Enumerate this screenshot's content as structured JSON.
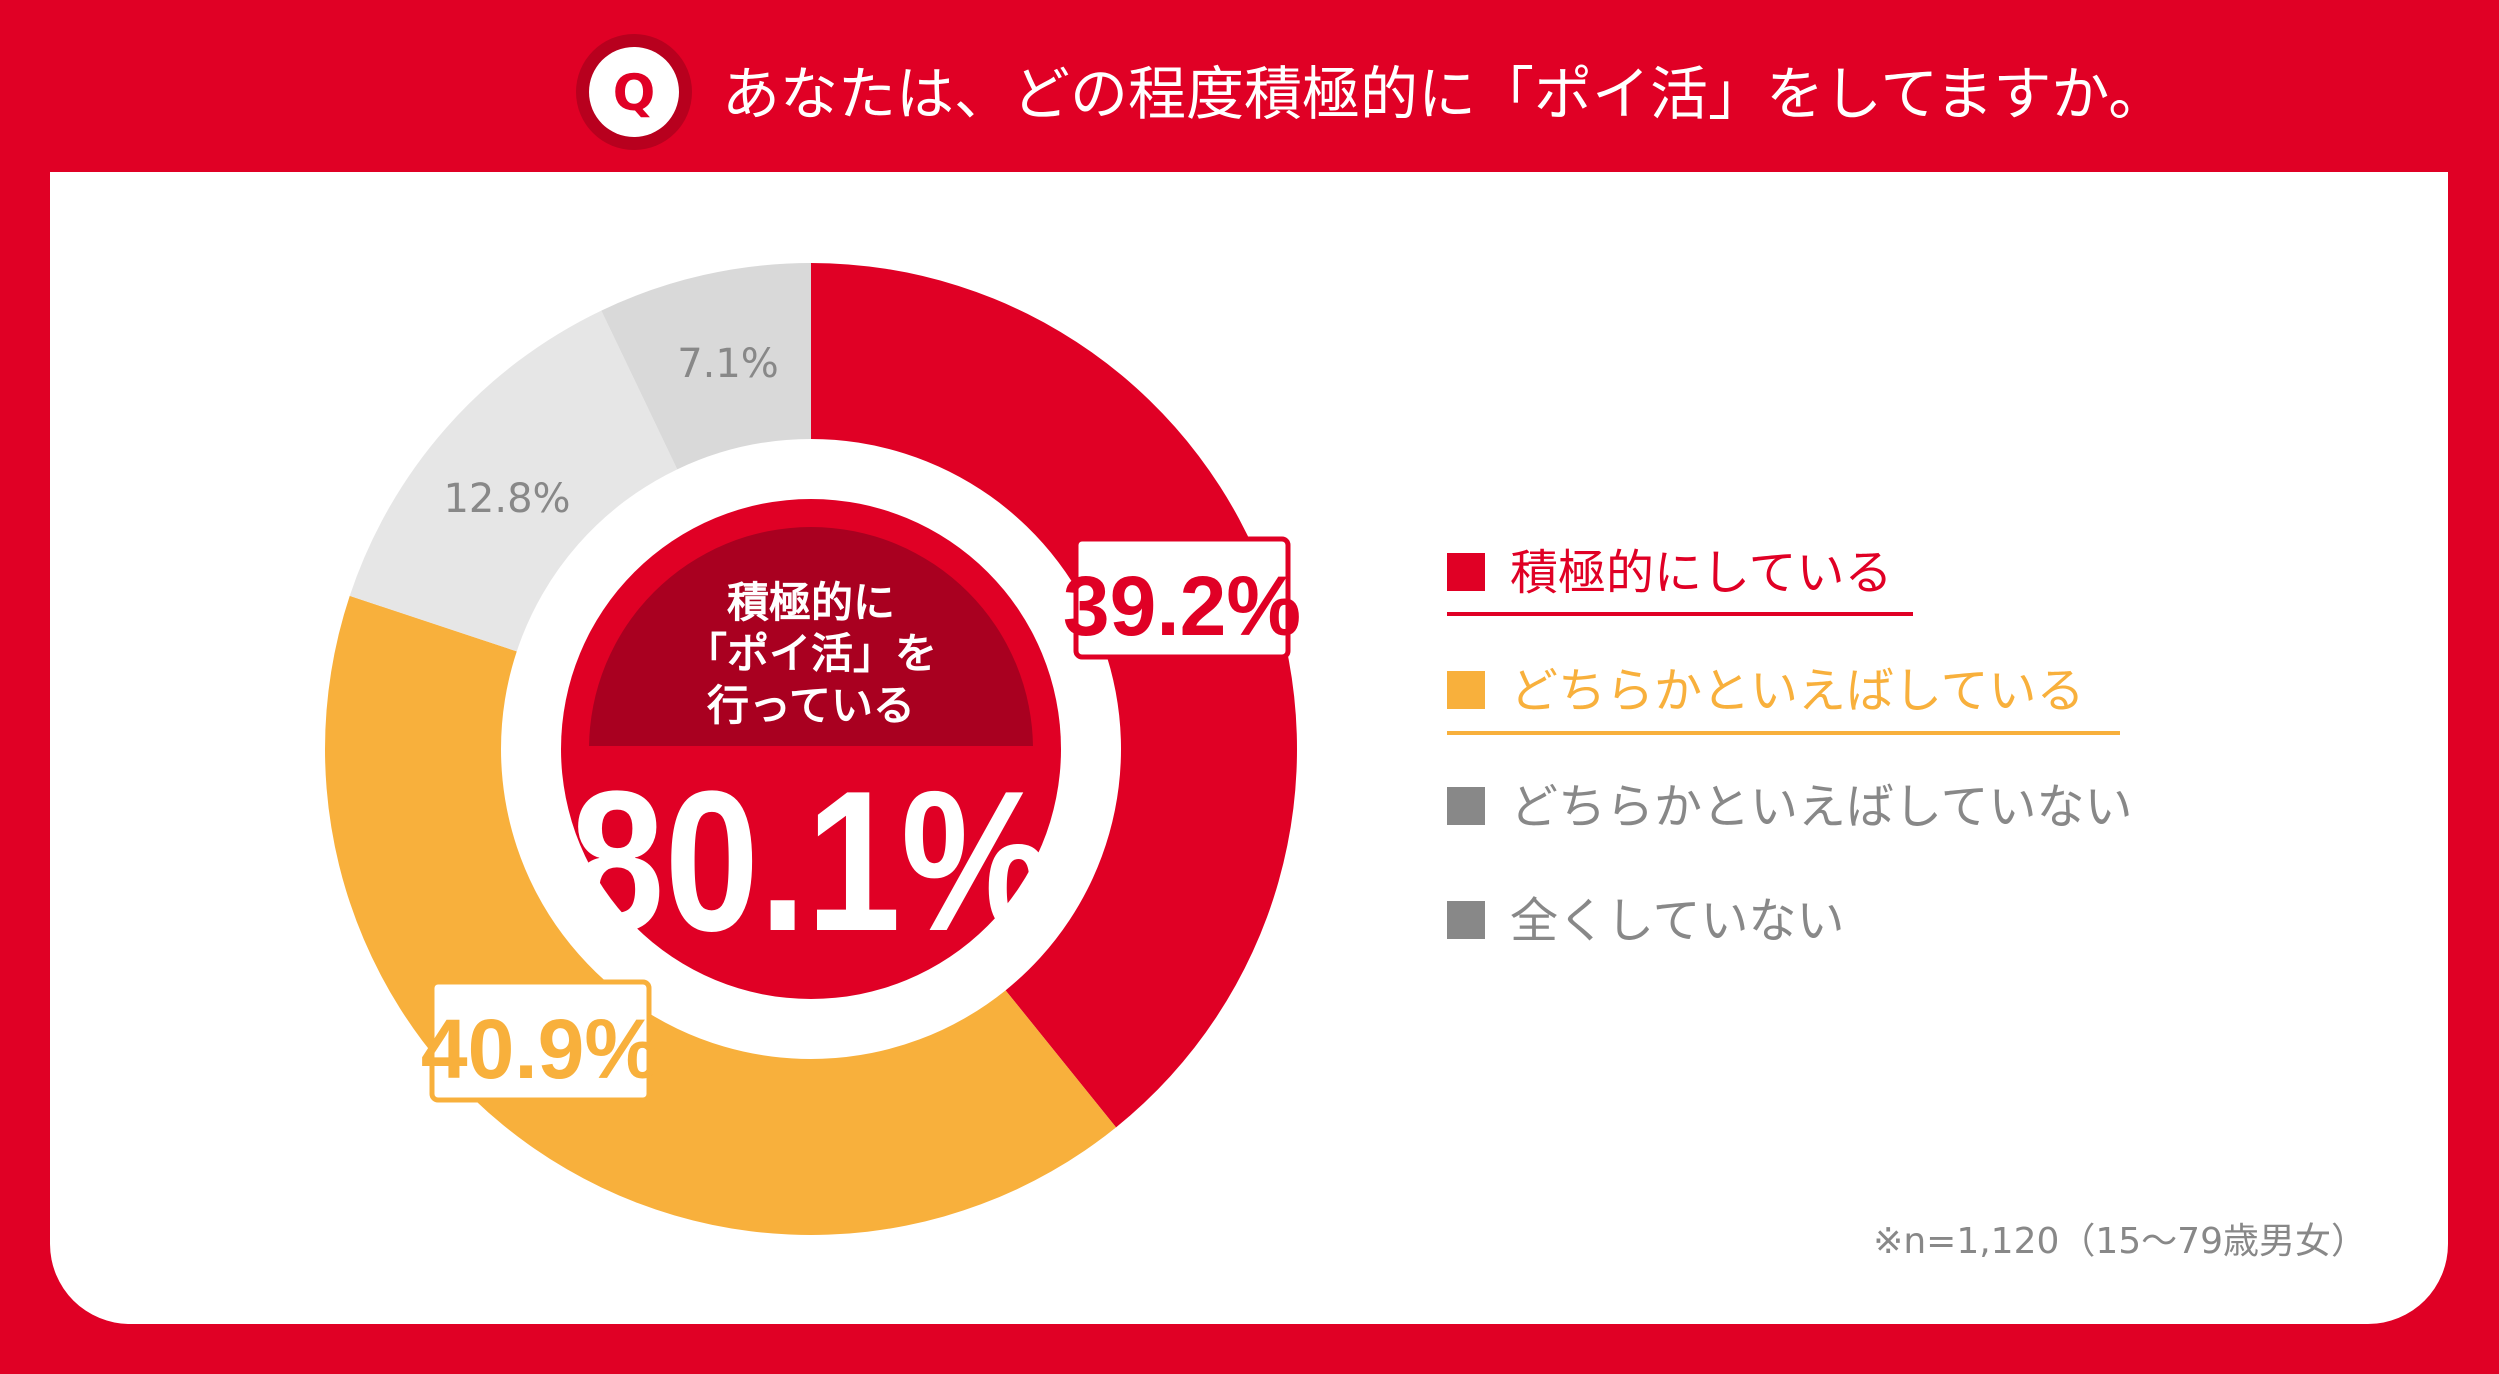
{
  "header": {
    "icon_letter": "Q",
    "question": "あなたは、どの程度積極的に「ポイ活」をしてますか。"
  },
  "colors": {
    "red": "#e00025",
    "dark_red": "#a90020",
    "orange": "#f8b03c",
    "light_gray": "#e6e6e6",
    "mid_gray": "#d9d9d9",
    "legend_gray": "#888888"
  },
  "chart_data": {
    "type": "pie",
    "variant": "donut",
    "title": "あなたは、どの程度積極的に「ポイ活」をしてますか。",
    "categories": [
      "積極的にしている",
      "どちらかといえばしている",
      "どちらかといえばしていない",
      "全くしていない"
    ],
    "values": [
      39.2,
      40.9,
      12.8,
      7.1
    ],
    "labels": [
      "39.2%",
      "40.9%",
      "12.8%",
      "7.1%"
    ],
    "start": "top, clockwise",
    "legend_position": "right"
  },
  "center": {
    "line1": "積極的に",
    "line2": "「ポイ活」を",
    "line3": "行っている",
    "value": "80.1%"
  },
  "footnote": "※n=1,120（15～79歳男女）"
}
